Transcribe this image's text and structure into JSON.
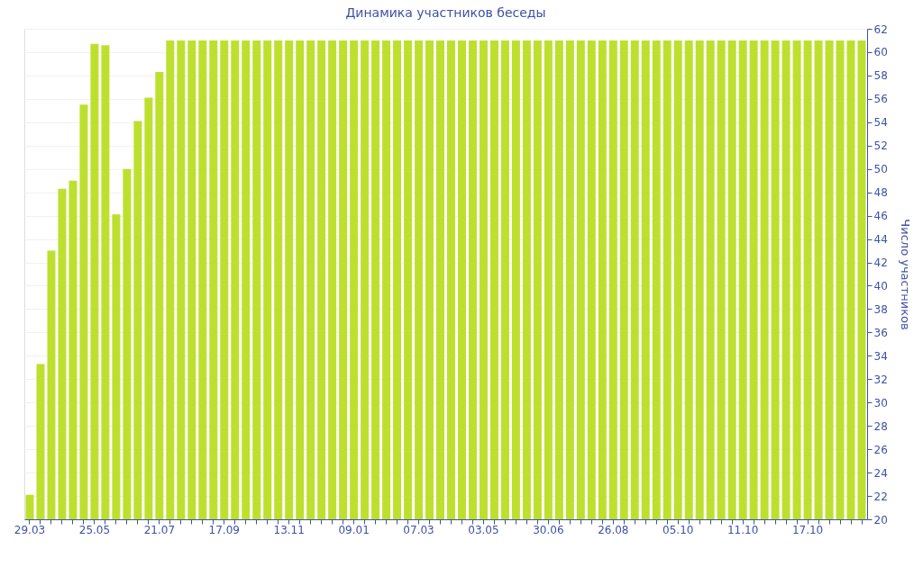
{
  "chart_data": {
    "type": "bar",
    "title": "Динамика участников беседы",
    "ylabel": "Число участников",
    "categories": [
      "29.03",
      null,
      null,
      null,
      null,
      null,
      "25.05",
      null,
      null,
      null,
      null,
      null,
      "21.07",
      null,
      null,
      null,
      null,
      null,
      "17.09",
      null,
      null,
      null,
      null,
      null,
      "13.11",
      null,
      null,
      null,
      null,
      null,
      "09.01",
      null,
      null,
      null,
      null,
      null,
      "07.03",
      null,
      null,
      null,
      null,
      null,
      "03.05",
      null,
      null,
      null,
      null,
      null,
      "30.06",
      null,
      null,
      null,
      null,
      null,
      "26.08",
      null,
      null,
      null,
      null,
      null,
      "05.10",
      null,
      null,
      null,
      null,
      null,
      "11.10",
      null,
      null,
      null,
      null,
      null,
      "17.10",
      null,
      null,
      null,
      null,
      null
    ],
    "values": [
      22.1,
      33.3,
      43,
      48.3,
      49,
      55.5,
      60.7,
      60.6,
      46.1,
      50,
      54.1,
      56.1,
      58.3,
      61,
      61,
      61,
      61,
      61,
      61,
      61,
      61,
      61,
      61,
      61,
      61,
      61,
      61,
      61,
      61,
      61,
      61,
      61,
      61,
      61,
      61,
      61,
      61,
      61,
      61,
      61,
      61,
      61,
      61,
      61,
      61,
      61,
      61,
      61,
      61,
      61,
      61,
      61,
      61,
      61,
      61,
      61,
      61,
      61,
      61,
      61,
      61,
      61,
      61,
      61,
      61,
      61,
      61,
      61,
      61,
      61,
      61,
      61,
      61,
      61,
      61,
      61,
      61,
      61
    ],
    "color": "#bde02f",
    "ylim": [
      20,
      62
    ],
    "yticks": [
      20,
      22,
      24,
      26,
      28,
      30,
      32,
      34,
      36,
      38,
      40,
      42,
      44,
      46,
      48,
      50,
      52,
      54,
      56,
      58,
      60,
      62
    ],
    "grid": "y"
  }
}
